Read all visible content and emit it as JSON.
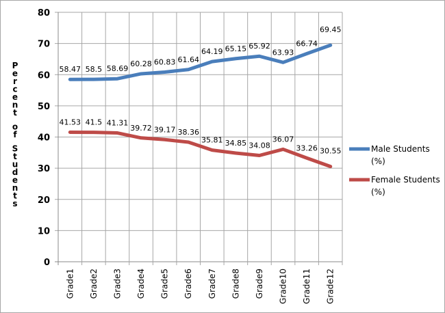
{
  "chart_data": {
    "type": "line",
    "title": "",
    "xlabel": "",
    "ylabel": "Percent of Students",
    "ylim": [
      0,
      80
    ],
    "yticks": [
      0,
      10,
      20,
      30,
      40,
      50,
      60,
      70,
      80
    ],
    "grid": true,
    "legend_position": "right",
    "categories": [
      "Grade1",
      "Grade2",
      "Grade3",
      "Grade4",
      "Grade5",
      "Grade6",
      "Grade7",
      "Grade8",
      "Grade9",
      "Grade10",
      "Grade11",
      "Grade12"
    ],
    "series": [
      {
        "name": "Male Students",
        "name_line2": "(%)",
        "color": "#4a7ebb",
        "values": [
          58.47,
          58.5,
          58.69,
          60.28,
          60.83,
          61.64,
          64.19,
          65.15,
          65.92,
          63.93,
          66.74,
          69.45
        ]
      },
      {
        "name": "Female Students",
        "name_line2": "(%)",
        "color": "#be4b48",
        "values": [
          41.53,
          41.5,
          41.31,
          39.72,
          39.17,
          38.36,
          35.81,
          34.85,
          34.08,
          36.07,
          33.26,
          30.55
        ]
      }
    ]
  }
}
